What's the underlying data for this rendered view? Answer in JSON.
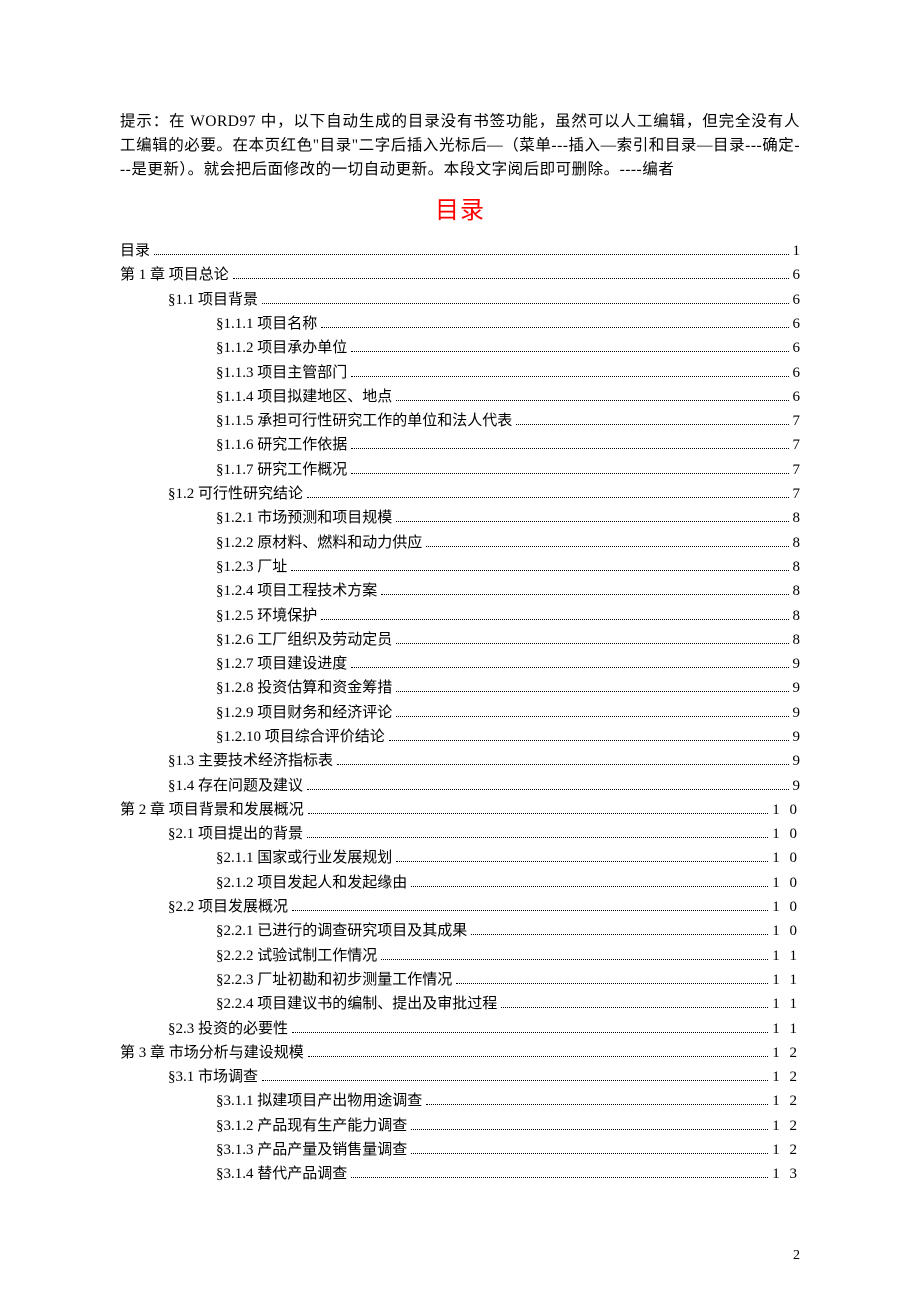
{
  "note": "提示：在 WORD97 中，以下自动生成的目录没有书签功能，虽然可以人工编辑，但完全没有人工编辑的必要。在本页红色\"目录\"二字后插入光标后—（菜单---插入—索引和目录—目录---确定---是更新）。就会把后面修改的一切自动更新。本段文字阅后即可删除。----编者",
  "title": "目录",
  "page_number": "2",
  "toc": [
    {
      "label": "目录",
      "page": "1",
      "indent": 0,
      "single": true
    },
    {
      "label": "第 1 章  项目总论",
      "page": "6",
      "indent": 0,
      "single": true
    },
    {
      "label": "§1.1  项目背景",
      "page": "6",
      "indent": 1,
      "single": true
    },
    {
      "label": "§1.1.1  项目名称",
      "page": "6",
      "indent": 2,
      "single": true
    },
    {
      "label": "§1.1.2  项目承办单位",
      "page": "6",
      "indent": 2,
      "single": true
    },
    {
      "label": "§1.1.3  项目主管部门",
      "page": "6",
      "indent": 2,
      "single": true
    },
    {
      "label": "§1.1.4  项目拟建地区、地点",
      "page": "6",
      "indent": 2,
      "single": true
    },
    {
      "label": "§1.1.5  承担可行性研究工作的单位和法人代表",
      "page": "7",
      "indent": 2,
      "single": true
    },
    {
      "label": "§1.1.6  研究工作依据",
      "page": "7",
      "indent": 2,
      "single": true
    },
    {
      "label": "§1.1.7  研究工作概况",
      "page": "7",
      "indent": 2,
      "single": true
    },
    {
      "label": "§1.2  可行性研究结论",
      "page": "7",
      "indent": 1,
      "single": true
    },
    {
      "label": "§1.2.1  市场预测和项目规模",
      "page": "8",
      "indent": 2,
      "single": true
    },
    {
      "label": "§1.2.2  原材料、燃料和动力供应",
      "page": "8",
      "indent": 2,
      "single": true
    },
    {
      "label": "§1.2.3  厂址",
      "page": "8",
      "indent": 2,
      "single": true
    },
    {
      "label": "§1.2.4  项目工程技术方案",
      "page": "8",
      "indent": 2,
      "single": true
    },
    {
      "label": "§1.2.5  环境保护",
      "page": "8",
      "indent": 2,
      "single": true
    },
    {
      "label": "§1.2.6  工厂组织及劳动定员",
      "page": "8",
      "indent": 2,
      "single": true
    },
    {
      "label": "§1.2.7  项目建设进度",
      "page": "9",
      "indent": 2,
      "single": true
    },
    {
      "label": "§1.2.8  投资估算和资金筹措",
      "page": "9",
      "indent": 2,
      "single": true
    },
    {
      "label": "§1.2.9  项目财务和经济评论",
      "page": "9",
      "indent": 2,
      "single": true
    },
    {
      "label": "§1.2.10  项目综合评价结论",
      "page": "9",
      "indent": 2,
      "single": true
    },
    {
      "label": "§1.3  主要技术经济指标表",
      "page": "9",
      "indent": 1,
      "single": true
    },
    {
      "label": "§1.4  存在问题及建议",
      "page": "9",
      "indent": 1,
      "single": true
    },
    {
      "label": "第 2 章  项目背景和发展概况",
      "page": "1 0",
      "indent": 0,
      "single": false
    },
    {
      "label": "§2.1  项目提出的背景",
      "page": "1 0",
      "indent": 1,
      "single": false
    },
    {
      "label": "§2.1.1  国家或行业发展规划",
      "page": "1 0",
      "indent": 2,
      "single": false
    },
    {
      "label": "§2.1.2  项目发起人和发起缘由",
      "page": "1 0",
      "indent": 2,
      "single": false
    },
    {
      "label": "§2.2  项目发展概况",
      "page": "1 0",
      "indent": 1,
      "single": false
    },
    {
      "label": "§2.2.1  已进行的调查研究项目及其成果",
      "page": "1 0",
      "indent": 2,
      "single": false
    },
    {
      "label": "§2.2.2  试验试制工作情况",
      "page": "1 1",
      "indent": 2,
      "single": false
    },
    {
      "label": "§2.2.3  厂址初勘和初步测量工作情况",
      "page": "1 1",
      "indent": 2,
      "single": false
    },
    {
      "label": "§2.2.4  项目建议书的编制、提出及审批过程",
      "page": "1 1",
      "indent": 2,
      "single": false
    },
    {
      "label": "§2.3  投资的必要性",
      "page": "1 1",
      "indent": 1,
      "single": false
    },
    {
      "label": "第 3 章  市场分析与建设规模",
      "page": "1 2",
      "indent": 0,
      "single": false
    },
    {
      "label": "§3.1  市场调查",
      "page": "1 2",
      "indent": 1,
      "single": false
    },
    {
      "label": "§3.1.1  拟建项目产出物用途调查",
      "page": "1 2",
      "indent": 2,
      "single": false
    },
    {
      "label": "§3.1.2  产品现有生产能力调查",
      "page": "1 2",
      "indent": 2,
      "single": false
    },
    {
      "label": "§3.1.3  产品产量及销售量调查",
      "page": "1 2",
      "indent": 2,
      "single": false
    },
    {
      "label": "§3.1.4  替代产品调查",
      "page": "1 3",
      "indent": 2,
      "single": false
    }
  ]
}
